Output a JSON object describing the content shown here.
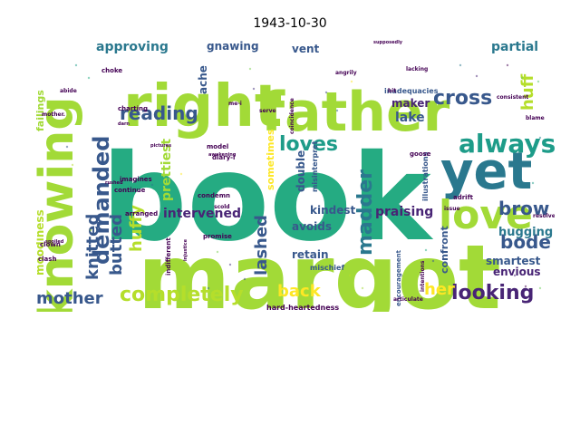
{
  "title": "1943-10-30",
  "colors": [
    "#1e9c89",
    "#25ab82",
    "#38588c",
    "#b5de2b",
    "#a2da37",
    "#7ad151",
    "#46327e",
    "#3e4989",
    "#31668e",
    "#fde725",
    "#2a788e",
    "#482475",
    "#440154",
    "#6ccd5a",
    "#54c568",
    "#26828e"
  ],
  "chart_data": {
    "type": "wordcloud",
    "words": [
      {
        "text": "book",
        "weight": 100
      },
      {
        "text": "margot",
        "weight": 82
      },
      {
        "text": "right",
        "weight": 60
      },
      {
        "text": "father",
        "weight": 55
      },
      {
        "text": "knowing",
        "weight": 42
      },
      {
        "text": "yet",
        "weight": 45
      },
      {
        "text": "love",
        "weight": 40
      },
      {
        "text": "always",
        "weight": 24
      },
      {
        "text": "demanded",
        "weight": 22
      },
      {
        "text": "loves",
        "weight": 21
      },
      {
        "text": "reading",
        "weight": 20
      },
      {
        "text": "madder",
        "weight": 20
      },
      {
        "text": "cross",
        "weight": 20
      },
      {
        "text": "completely",
        "weight": 21
      },
      {
        "text": "looking",
        "weight": 20
      },
      {
        "text": "mother",
        "weight": 18
      },
      {
        "text": "knitted",
        "weight": 18
      },
      {
        "text": "butted",
        "weight": 18
      },
      {
        "text": "huffy",
        "weight": 17
      },
      {
        "text": "lashed",
        "weight": 17
      },
      {
        "text": "brow",
        "weight": 18
      },
      {
        "text": "bode",
        "weight": 17
      },
      {
        "text": "back",
        "weight": 16
      },
      {
        "text": "her",
        "weight": 16
      },
      {
        "text": "huff",
        "weight": 15
      },
      {
        "text": "intervened",
        "weight": 14
      },
      {
        "text": "prettiest",
        "weight": 14
      },
      {
        "text": "approving",
        "weight": 13
      },
      {
        "text": "partial",
        "weight": 13
      },
      {
        "text": "lake",
        "weight": 13
      },
      {
        "text": "praising",
        "weight": 13
      },
      {
        "text": "hugging",
        "weight": 12
      },
      {
        "text": "smartest",
        "weight": 11
      },
      {
        "text": "envious",
        "weight": 11
      },
      {
        "text": "gnawing",
        "weight": 11
      },
      {
        "text": "ache",
        "weight": 11
      },
      {
        "text": "vent",
        "weight": 11
      },
      {
        "text": "maker",
        "weight": 11
      },
      {
        "text": "kindest",
        "weight": 11
      },
      {
        "text": "double",
        "weight": 11
      },
      {
        "text": "moodiness",
        "weight": 11
      },
      {
        "text": "avoids",
        "weight": 11
      },
      {
        "text": "retain",
        "weight": 11
      },
      {
        "text": "confront",
        "weight": 10
      },
      {
        "text": "sometimes",
        "weight": 10
      },
      {
        "text": "failings",
        "weight": 10
      },
      {
        "text": "misinterpret",
        "weight": 9
      },
      {
        "text": "illustrations",
        "weight": 9
      },
      {
        "text": "inadequacies",
        "weight": 8
      },
      {
        "text": "hard-heartedness",
        "weight": 8
      },
      {
        "text": "encouragement",
        "weight": 7
      },
      {
        "text": "mischief",
        "weight": 8
      },
      {
        "text": "indifferent",
        "weight": 7
      },
      {
        "text": "diary-i",
        "weight": 7
      },
      {
        "text": "condemn",
        "weight": 7
      },
      {
        "text": "promise",
        "weight": 7
      },
      {
        "text": "clown",
        "weight": 7
      },
      {
        "text": "clash",
        "weight": 7
      },
      {
        "text": "arranged",
        "weight": 7
      },
      {
        "text": "continue",
        "weight": 7
      },
      {
        "text": "imagines",
        "weight": 7
      },
      {
        "text": "model",
        "weight": 7
      },
      {
        "text": "charting",
        "weight": 7
      },
      {
        "text": "choke",
        "weight": 7
      },
      {
        "text": "goose",
        "weight": 7
      },
      {
        "text": "adrift",
        "weight": 7
      },
      {
        "text": "scold",
        "weight": 6
      },
      {
        "text": "resolve",
        "weight": 6
      },
      {
        "text": "blame",
        "weight": 6
      },
      {
        "text": "consistent",
        "weight": 6
      },
      {
        "text": "lacking",
        "weight": 6
      },
      {
        "text": "angrily",
        "weight": 6
      },
      {
        "text": "abide",
        "weight": 6
      },
      {
        "text": "intentions",
        "weight": 6
      },
      {
        "text": "issue",
        "weight": 6
      },
      {
        "text": "articulate",
        "weight": 6
      },
      {
        "text": "serve",
        "weight": 6
      },
      {
        "text": "coincidence",
        "weight": 6
      },
      {
        "text": "bit",
        "weight": 6
      },
      {
        "text": "me-i",
        "weight": 6
      },
      {
        "text": "mother.",
        "weight": 6
      },
      {
        "text": "darn",
        "weight": 5
      },
      {
        "text": "pictures",
        "weight": 5
      },
      {
        "text": "rushed",
        "weight": 5
      },
      {
        "text": "awakening",
        "weight": 5
      },
      {
        "text": "spoiled",
        "weight": 5
      },
      {
        "text": "injustice",
        "weight": 5
      },
      {
        "text": "supposedly",
        "weight": 5
      }
    ]
  }
}
